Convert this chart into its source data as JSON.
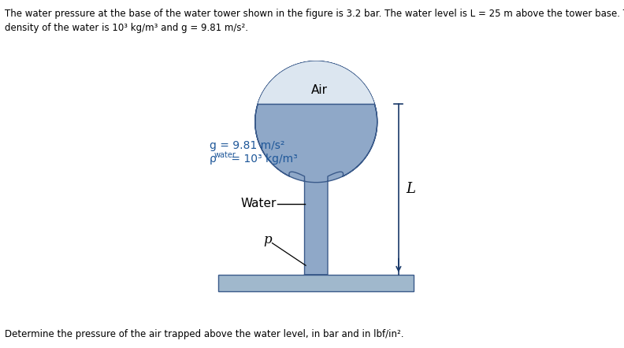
{
  "bg_color": "#ffffff",
  "tower_color": "#8fa8c8",
  "ground_color": "#8fa8c8",
  "air_color": "#dce6f0",
  "outline_color": "#3a5a8a",
  "text_color": "#000000",
  "blue_text_color": "#1e5799",
  "dim_line_color": "#1a3a6a",
  "header_line1": "The water pressure at the base of the water tower shown in the figure is 3.2 bar. The water level is L = 25 m above the tower base. The",
  "header_line2": "density of the water is 10³ kg/m³ and g = 9.81 m/s².",
  "footer_text": "Determine the pressure of the air trapped above the water level, in bar and in lbf/in².",
  "label_air": "Air",
  "label_water": "Water",
  "label_p": "p",
  "label_L": "L",
  "label_g": "g = 9.81 m/s²",
  "label_rho_pre": "ρ",
  "label_rho_sub": "water",
  "label_rho_post": " = 10³ kg/m³",
  "figsize": [
    7.92,
    4.42
  ],
  "dpi": 100
}
